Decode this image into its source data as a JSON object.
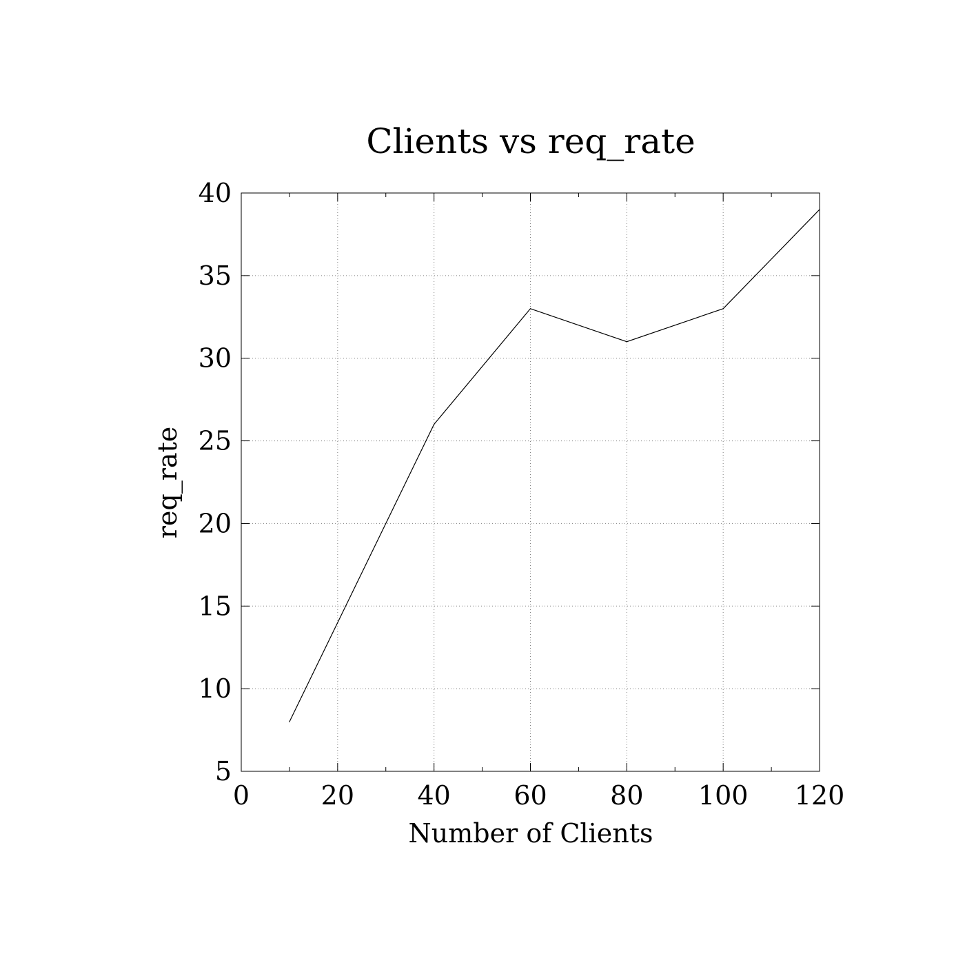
{
  "chart_data": {
    "type": "line",
    "title": "Clients vs req_rate",
    "xlabel": "Number of Clients",
    "ylabel": "req_rate",
    "xlim": [
      0,
      120
    ],
    "ylim": [
      5,
      40
    ],
    "xticks": [
      0,
      20,
      40,
      60,
      80,
      100,
      120
    ],
    "yticks": [
      5,
      10,
      15,
      20,
      25,
      30,
      35,
      40
    ],
    "x_minor_ticks": [
      10,
      30,
      50,
      70,
      90,
      110
    ],
    "grid": true,
    "grid_style": "dotted",
    "series": [
      {
        "x": [
          10,
          40,
          60,
          80,
          100,
          120
        ],
        "values": [
          8,
          26,
          33,
          31,
          33,
          39
        ]
      }
    ],
    "colors": {
      "line": "#000000",
      "grid": "#808080",
      "frame": "#000000",
      "background": "#ffffff"
    }
  }
}
